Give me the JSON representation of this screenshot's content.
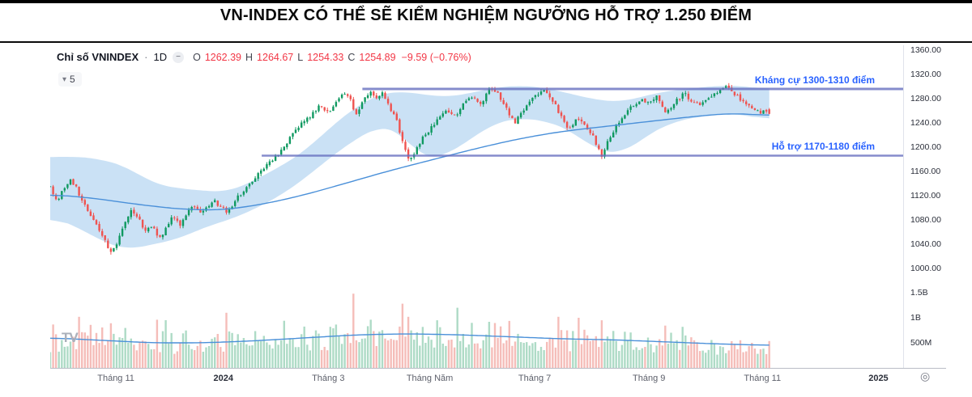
{
  "title": "VN-INDEX CÓ THỂ SẼ KIỂM NGHIỆM NGƯỠNG HỖ TRỢ 1.250 ĐIỂM",
  "chart": {
    "symbol": "Chỉ số VNINDEX",
    "separator": "·",
    "interval": "1D",
    "ohlc": {
      "o_label": "O",
      "o": "1262.39",
      "h_label": "H",
      "h": "1264.67",
      "l_label": "L",
      "l": "1254.33",
      "c_label": "C",
      "c": "1254.89",
      "change": "−9.59 (−0.76%)"
    },
    "indicator_count": "5",
    "logo_text": "TV",
    "icons": {
      "chevron_down": "▾",
      "minimize": "−",
      "target": "◎"
    }
  },
  "chart_data": {
    "type": "candlestick",
    "symbol": "VNINDEX",
    "interval": "1D",
    "annotations": {
      "resistance": {
        "label": "Kháng cự 1300-1310 điểm",
        "price": 1296,
        "x_start": 0.366,
        "color": "#6770c0"
      },
      "support": {
        "label": "Hỗ trợ 1170-1180 điểm",
        "price": 1186,
        "x_start": 0.248,
        "color": "#6770c0"
      }
    },
    "y_axis": {
      "ticks": [
        1360,
        1320,
        1280,
        1240,
        1200,
        1160,
        1120,
        1080,
        1040,
        1000
      ]
    },
    "volume_axis": {
      "ticks": [
        {
          "label": "1.5B",
          "value": 1.5
        },
        {
          "label": "1B",
          "value": 1.0
        },
        {
          "label": "500M",
          "value": 0.5
        }
      ]
    },
    "x_axis": {
      "labels": [
        {
          "text": "Tháng 11",
          "x": 0.077
        },
        {
          "text": "2024",
          "x": 0.203,
          "year": true
        },
        {
          "text": "Tháng 3",
          "x": 0.326
        },
        {
          "text": "Tháng Năm",
          "x": 0.445
        },
        {
          "text": "Tháng 7",
          "x": 0.568
        },
        {
          "text": "Tháng 9",
          "x": 0.702
        },
        {
          "text": "Tháng 11",
          "x": 0.835
        },
        {
          "text": "2025",
          "x": 0.971,
          "year": true
        }
      ]
    },
    "colors": {
      "up": "#0f9960",
      "down": "#ef5350",
      "volume_up": "#aedbc6",
      "volume_down": "#f5bdb9",
      "band_fill": "rgba(150,195,235,0.5)",
      "ma_line": "#4a90d9",
      "annotation_label": "#2962ff"
    },
    "series": {
      "candle_count": 250,
      "data_end": 0.843,
      "last_candle": {
        "open": 1262.39,
        "high": 1264.67,
        "low": 1254.33,
        "close": 1254.89
      },
      "close_anchors": [
        [
          0.0,
          1135
        ],
        [
          0.008,
          1112
        ],
        [
          0.016,
          1132
        ],
        [
          0.024,
          1148
        ],
        [
          0.032,
          1128
        ],
        [
          0.04,
          1105
        ],
        [
          0.048,
          1088
        ],
        [
          0.056,
          1068
        ],
        [
          0.064,
          1045
        ],
        [
          0.072,
          1026
        ],
        [
          0.08,
          1048
        ],
        [
          0.088,
          1075
        ],
        [
          0.096,
          1098
        ],
        [
          0.104,
          1080
        ],
        [
          0.112,
          1058
        ],
        [
          0.12,
          1075
        ],
        [
          0.128,
          1048
        ],
        [
          0.136,
          1065
        ],
        [
          0.144,
          1088
        ],
        [
          0.152,
          1072
        ],
        [
          0.16,
          1092
        ],
        [
          0.168,
          1108
        ],
        [
          0.176,
          1090
        ],
        [
          0.184,
          1102
        ],
        [
          0.192,
          1112
        ],
        [
          0.2,
          1102
        ],
        [
          0.208,
          1094
        ],
        [
          0.216,
          1110
        ],
        [
          0.224,
          1124
        ],
        [
          0.234,
          1142
        ],
        [
          0.244,
          1156
        ],
        [
          0.254,
          1170
        ],
        [
          0.264,
          1184
        ],
        [
          0.274,
          1202
        ],
        [
          0.284,
          1220
        ],
        [
          0.294,
          1238
        ],
        [
          0.304,
          1250
        ],
        [
          0.315,
          1268
        ],
        [
          0.326,
          1256
        ],
        [
          0.338,
          1282
        ],
        [
          0.35,
          1288
        ],
        [
          0.358,
          1250
        ],
        [
          0.366,
          1272
        ],
        [
          0.374,
          1291
        ],
        [
          0.382,
          1280
        ],
        [
          0.39,
          1288
        ],
        [
          0.398,
          1266
        ],
        [
          0.406,
          1244
        ],
        [
          0.414,
          1206
        ],
        [
          0.421,
          1176
        ],
        [
          0.428,
          1192
        ],
        [
          0.436,
          1214
        ],
        [
          0.445,
          1228
        ],
        [
          0.455,
          1246
        ],
        [
          0.465,
          1262
        ],
        [
          0.475,
          1250
        ],
        [
          0.485,
          1272
        ],
        [
          0.495,
          1284
        ],
        [
          0.505,
          1270
        ],
        [
          0.515,
          1296
        ],
        [
          0.525,
          1286
        ],
        [
          0.535,
          1262
        ],
        [
          0.545,
          1242
        ],
        [
          0.555,
          1262
        ],
        [
          0.568,
          1284
        ],
        [
          0.578,
          1296
        ],
        [
          0.588,
          1280
        ],
        [
          0.598,
          1252
        ],
        [
          0.608,
          1230
        ],
        [
          0.618,
          1248
        ],
        [
          0.628,
          1236
        ],
        [
          0.638,
          1214
        ],
        [
          0.646,
          1184
        ],
        [
          0.654,
          1210
        ],
        [
          0.662,
          1232
        ],
        [
          0.672,
          1252
        ],
        [
          0.682,
          1268
        ],
        [
          0.692,
          1278
        ],
        [
          0.702,
          1270
        ],
        [
          0.712,
          1284
        ],
        [
          0.722,
          1256
        ],
        [
          0.732,
          1272
        ],
        [
          0.742,
          1290
        ],
        [
          0.752,
          1276
        ],
        [
          0.762,
          1266
        ],
        [
          0.772,
          1282
        ],
        [
          0.782,
          1292
        ],
        [
          0.792,
          1298
        ],
        [
          0.8,
          1292
        ],
        [
          0.808,
          1280
        ],
        [
          0.816,
          1268
        ],
        [
          0.824,
          1262
        ],
        [
          0.832,
          1258
        ],
        [
          0.838,
          1261
        ],
        [
          0.843,
          1255
        ]
      ],
      "band_anchors": [
        [
          0.0,
          1183,
          1085
        ],
        [
          0.03,
          1185,
          1070
        ],
        [
          0.06,
          1180,
          1045
        ],
        [
          0.09,
          1168,
          1030
        ],
        [
          0.12,
          1140,
          1040
        ],
        [
          0.15,
          1132,
          1048
        ],
        [
          0.18,
          1128,
          1068
        ],
        [
          0.21,
          1126,
          1080
        ],
        [
          0.24,
          1146,
          1098
        ],
        [
          0.27,
          1168,
          1120
        ],
        [
          0.3,
          1195,
          1150
        ],
        [
          0.33,
          1235,
          1185
        ],
        [
          0.36,
          1268,
          1215
        ],
        [
          0.385,
          1288,
          1235
        ],
        [
          0.41,
          1292,
          1228
        ],
        [
          0.435,
          1288,
          1180
        ],
        [
          0.46,
          1282,
          1184
        ],
        [
          0.49,
          1288,
          1210
        ],
        [
          0.52,
          1298,
          1240
        ],
        [
          0.55,
          1302,
          1248
        ],
        [
          0.58,
          1298,
          1244
        ],
        [
          0.61,
          1288,
          1228
        ],
        [
          0.64,
          1278,
          1195
        ],
        [
          0.67,
          1274,
          1188
        ],
        [
          0.7,
          1286,
          1220
        ],
        [
          0.73,
          1294,
          1242
        ],
        [
          0.76,
          1298,
          1250
        ],
        [
          0.79,
          1302,
          1256
        ],
        [
          0.82,
          1300,
          1252
        ],
        [
          0.843,
          1294,
          1244
        ]
      ],
      "ma_anchors": [
        [
          0.0,
          1122
        ],
        [
          0.05,
          1116
        ],
        [
          0.1,
          1106
        ],
        [
          0.15,
          1098
        ],
        [
          0.2,
          1096
        ],
        [
          0.25,
          1106
        ],
        [
          0.3,
          1122
        ],
        [
          0.35,
          1142
        ],
        [
          0.4,
          1162
        ],
        [
          0.45,
          1180
        ],
        [
          0.5,
          1198
        ],
        [
          0.55,
          1214
        ],
        [
          0.6,
          1226
        ],
        [
          0.65,
          1234
        ],
        [
          0.7,
          1242
        ],
        [
          0.75,
          1250
        ],
        [
          0.8,
          1256
        ],
        [
          0.843,
          1252
        ]
      ],
      "volume_ma_anchors": [
        [
          0.0,
          0.6
        ],
        [
          0.06,
          0.55
        ],
        [
          0.12,
          0.5
        ],
        [
          0.18,
          0.5
        ],
        [
          0.24,
          0.54
        ],
        [
          0.3,
          0.6
        ],
        [
          0.36,
          0.66
        ],
        [
          0.42,
          0.68
        ],
        [
          0.48,
          0.66
        ],
        [
          0.54,
          0.62
        ],
        [
          0.6,
          0.58
        ],
        [
          0.66,
          0.56
        ],
        [
          0.72,
          0.52
        ],
        [
          0.78,
          0.48
        ],
        [
          0.843,
          0.45
        ]
      ],
      "volume_spikes": [
        [
          0.205,
          1.1
        ],
        [
          0.357,
          1.48
        ],
        [
          0.414,
          1.28
        ],
        [
          0.452,
          0.95
        ],
        [
          0.478,
          1.2
        ],
        [
          0.515,
          0.92
        ],
        [
          0.62,
          1.0
        ],
        [
          0.648,
          0.95
        ],
        [
          0.742,
          0.82
        ]
      ]
    }
  }
}
